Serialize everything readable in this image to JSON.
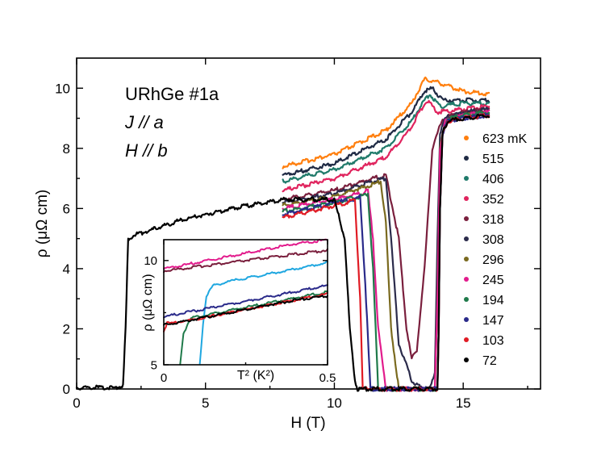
{
  "chart_data": {
    "type": "line",
    "xlabel": "H (T)",
    "ylabel": "ρ (μΩ cm)",
    "xlim": [
      0,
      18
    ],
    "ylim": [
      0,
      11
    ],
    "xticks": [
      0,
      5,
      10,
      15
    ],
    "yticks": [
      0,
      2,
      4,
      6,
      8,
      10
    ],
    "annotation_lines": [
      "URhGe #1a",
      "J // a",
      "H // b"
    ],
    "legend": {
      "position": "right",
      "unit": "mK",
      "entries": [
        {
          "label": "623 mK",
          "color": "#ff7f0e"
        },
        {
          "label": "515",
          "color": "#1f2a44"
        },
        {
          "label": "406",
          "color": "#1f7a6a"
        },
        {
          "label": "352",
          "color": "#e0245e"
        },
        {
          "label": "318",
          "color": "#7a1f3d"
        },
        {
          "label": "308",
          "color": "#2b2b4b"
        },
        {
          "label": "296",
          "color": "#7a6a1f"
        },
        {
          "label": "245",
          "color": "#e21b8c"
        },
        {
          "label": "194",
          "color": "#1f7a4a"
        },
        {
          "label": "147",
          "color": "#2a2a8a"
        },
        {
          "label": "103",
          "color": "#e01b24"
        },
        {
          "label": "72",
          "color": "#000000"
        }
      ]
    },
    "series": [
      {
        "name": "623 mK",
        "color": "#ff7f0e",
        "x": [
          8.0,
          10,
          12,
          13.0,
          13.5,
          14.0,
          15.0,
          16.0
        ],
        "y": [
          7.4,
          7.8,
          8.6,
          9.5,
          10.3,
          10.2,
          9.9,
          9.8
        ]
      },
      {
        "name": "515",
        "color": "#1f2a44",
        "x": [
          8.0,
          10,
          12,
          13.0,
          13.5,
          13.8,
          14.2,
          15.0,
          16.0
        ],
        "y": [
          7.1,
          7.5,
          8.3,
          9.2,
          9.9,
          10.0,
          9.6,
          9.6,
          9.6
        ]
      },
      {
        "name": "406",
        "color": "#1f7a6a",
        "x": [
          8.0,
          10,
          12,
          13.0,
          13.4,
          13.7,
          14.1,
          15.0,
          16.0
        ],
        "y": [
          6.9,
          7.3,
          8.0,
          8.9,
          9.5,
          9.8,
          9.4,
          9.5,
          9.5
        ]
      },
      {
        "name": "352",
        "color": "#e0245e",
        "x": [
          8.0,
          10,
          12,
          12.9,
          13.3,
          13.6,
          14.0,
          15.0,
          16.0
        ],
        "y": [
          6.6,
          7.0,
          7.7,
          8.6,
          9.2,
          9.6,
          9.2,
          9.3,
          9.4
        ]
      },
      {
        "name": "318",
        "color": "#7a1f3d",
        "x": [
          8.0,
          10,
          11.5,
          12.0,
          12.5,
          12.8,
          13.0,
          13.2,
          13.5,
          13.8,
          14.2,
          15.0,
          16.0
        ],
        "y": [
          6.3,
          6.6,
          7.0,
          7.1,
          5.0,
          2.0,
          1.0,
          1.3,
          4.0,
          8.0,
          9.0,
          9.2,
          9.3
        ]
      },
      {
        "name": "308",
        "color": "#2b2b4b",
        "x": [
          8.0,
          10,
          11.5,
          12.0,
          12.2,
          12.5,
          13.0,
          13.4,
          13.7,
          13.9,
          14.0,
          14.1,
          14.3,
          15.0,
          16.0
        ],
        "y": [
          6.2,
          6.5,
          6.9,
          7.0,
          5.0,
          1.5,
          0.3,
          0.0,
          0.0,
          0.5,
          5.0,
          8.5,
          9.0,
          9.2,
          9.3
        ]
      },
      {
        "name": "296",
        "color": "#7a6a1f",
        "x": [
          8.0,
          10,
          11.5,
          11.8,
          12.0,
          12.2,
          12.5,
          13.5,
          13.9,
          14.0,
          14.1,
          14.3,
          15.0,
          16.0
        ],
        "y": [
          6.1,
          6.4,
          6.8,
          6.9,
          5.5,
          2.0,
          0.0,
          0.0,
          0.0,
          3.0,
          8.0,
          8.9,
          9.1,
          9.2
        ]
      },
      {
        "name": "245",
        "color": "#e21b8c",
        "x": [
          8.0,
          10,
          11.0,
          11.3,
          11.5,
          11.7,
          12.0,
          13.8,
          13.9,
          14.0,
          14.1,
          14.3,
          15.0,
          16.0
        ],
        "y": [
          6.0,
          6.3,
          6.5,
          6.6,
          5.0,
          2.0,
          0.0,
          0.0,
          0.0,
          3.0,
          8.0,
          8.9,
          9.1,
          9.2
        ]
      },
      {
        "name": "194",
        "color": "#1f7a4a",
        "x": [
          8.0,
          10,
          11.0,
          11.3,
          11.5,
          11.7,
          14.0,
          14.05,
          14.1,
          14.2,
          14.4,
          15.0,
          16.0
        ],
        "y": [
          5.9,
          6.2,
          6.4,
          6.5,
          4.0,
          0.0,
          0.0,
          2.0,
          6.0,
          8.5,
          9.0,
          9.1,
          9.2
        ]
      },
      {
        "name": "147",
        "color": "#2a2a8a",
        "x": [
          8.0,
          10,
          10.8,
          11.0,
          11.2,
          11.4,
          14.0,
          14.05,
          14.1,
          14.2,
          14.4,
          15.0,
          16.0
        ],
        "y": [
          5.8,
          6.2,
          6.3,
          6.4,
          3.5,
          0.0,
          0.0,
          2.0,
          6.0,
          8.5,
          8.9,
          9.0,
          9.1
        ]
      },
      {
        "name": "103",
        "color": "#e01b24",
        "x": [
          8.0,
          10,
          10.5,
          10.8,
          11.0,
          11.1,
          14.0,
          14.05,
          14.1,
          14.2,
          14.4,
          15.0,
          16.0
        ],
        "y": [
          5.7,
          6.1,
          6.2,
          6.3,
          3.0,
          0.0,
          0.0,
          2.0,
          6.0,
          8.5,
          8.9,
          9.0,
          9.1
        ]
      },
      {
        "name": "72",
        "color": "#000000",
        "x": [
          0.0,
          1.5,
          1.8,
          1.9,
          2.0,
          2.2,
          4,
          6,
          8,
          9.5,
          10.0,
          10.4,
          10.6,
          10.8,
          10.9,
          14.0,
          14.05,
          14.1,
          14.2,
          14.4,
          15.0,
          16.0
        ],
        "y": [
          0.05,
          0.05,
          0.1,
          2.0,
          5.0,
          5.1,
          5.6,
          6.0,
          6.3,
          6.3,
          6.3,
          5.0,
          2.0,
          0.3,
          0.0,
          0.0,
          2.0,
          6.0,
          8.5,
          8.9,
          9.0,
          9.1
        ]
      }
    ],
    "inset": {
      "type": "line",
      "xlabel": "T² (K²)",
      "ylabel": "ρ (μΩ cm)",
      "xlim": [
        0,
        0.5
      ],
      "ylim": [
        5,
        11
      ],
      "xticks": [
        0,
        0.5
      ],
      "yticks": [
        5,
        10
      ],
      "series": [
        {
          "name": "318",
          "color": "#7a1f3d",
          "x": [
            0.0,
            0.1,
            0.2,
            0.3,
            0.4,
            0.5
          ],
          "y": [
            9.5,
            9.7,
            9.9,
            10.1,
            10.3,
            10.5
          ]
        },
        {
          "name": "245",
          "color": "#e21b8c",
          "x": [
            0.0,
            0.1,
            0.2,
            0.3,
            0.4,
            0.5
          ],
          "y": [
            9.6,
            9.9,
            10.2,
            10.5,
            10.8,
            11.0
          ]
        },
        {
          "name": "light-blue",
          "color": "#1fa7e0",
          "x": [
            0.11,
            0.12,
            0.13,
            0.15,
            0.2,
            0.3,
            0.4,
            0.5
          ],
          "y": [
            5.0,
            7.0,
            8.3,
            8.8,
            9.0,
            9.3,
            9.6,
            9.9
          ]
        },
        {
          "name": "147",
          "color": "#2a2a8a",
          "x": [
            0.0,
            0.1,
            0.2,
            0.3,
            0.4,
            0.5
          ],
          "y": [
            7.3,
            7.6,
            7.9,
            8.2,
            8.5,
            8.8
          ]
        },
        {
          "name": "194",
          "color": "#1f7a4a",
          "x": [
            0.05,
            0.06,
            0.08,
            0.1,
            0.2,
            0.3,
            0.4,
            0.5
          ],
          "y": [
            5.0,
            6.5,
            7.2,
            7.3,
            7.6,
            7.9,
            8.2,
            8.5
          ]
        },
        {
          "name": "103",
          "color": "#e01b24",
          "x": [
            0.0,
            0.01,
            0.02,
            0.1,
            0.2,
            0.3,
            0.4,
            0.5
          ],
          "y": [
            6.6,
            7.0,
            7.0,
            7.2,
            7.5,
            7.8,
            8.1,
            8.4
          ]
        },
        {
          "name": "72",
          "color": "#000000",
          "x": [
            0.0,
            0.1,
            0.2,
            0.3,
            0.4,
            0.5
          ],
          "y": [
            6.9,
            7.2,
            7.5,
            7.8,
            8.1,
            8.3
          ]
        }
      ]
    }
  }
}
